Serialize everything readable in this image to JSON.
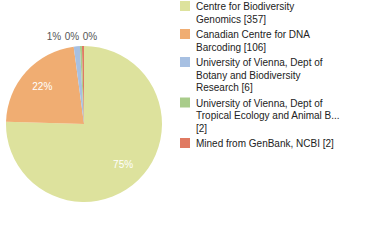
{
  "chart_data": {
    "type": "pie",
    "categories": [
      "Centre for Biodiversity Genomics [357]",
      "Canadian Centre for DNA Barcoding [106]",
      "University of Vienna, Dept of Botany and Biodiversity Research [6]",
      "University of Vienna, Dept of Tropical Ecology and Animal B... [2]",
      "Mined from GenBank, NCBI [2]"
    ],
    "values": [
      75.48,
      22.41,
      1.27,
      0.42,
      0.42
    ],
    "value_labels": [
      "75%",
      "22%",
      "1%",
      "0%",
      "0%"
    ],
    "colors": [
      "#dde29d",
      "#f0ad72",
      "#a7c0e2",
      "#a9cc8b",
      "#e07a62"
    ],
    "data_labels": true,
    "legend": "upper right"
  }
}
